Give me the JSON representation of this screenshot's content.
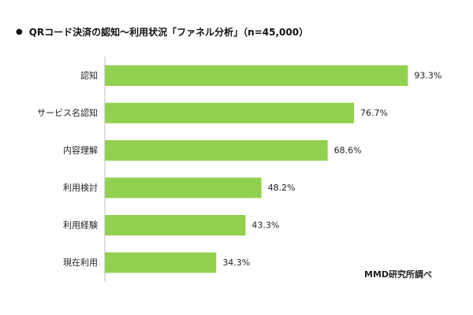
{
  "chart_data": {
    "type": "bar",
    "orientation": "horizontal",
    "title": "QRコード決済の認知～利用状況「ファネル分析」（n=45,000）",
    "categories": [
      "認知",
      "サービス名認知",
      "内容理解",
      "利用検討",
      "利用経験",
      "現在利用"
    ],
    "values": [
      93.3,
      76.7,
      68.6,
      48.2,
      43.3,
      34.3
    ],
    "value_labels": [
      "93.3%",
      "76.7%",
      "68.6%",
      "48.2%",
      "43.3%",
      "34.3%"
    ],
    "value_unit": "%",
    "xlim": [
      0,
      100
    ],
    "grid": false,
    "legend": "none",
    "bar_color": "#92d050"
  },
  "title_bullet": "●",
  "source": "MMD研究所調べ"
}
